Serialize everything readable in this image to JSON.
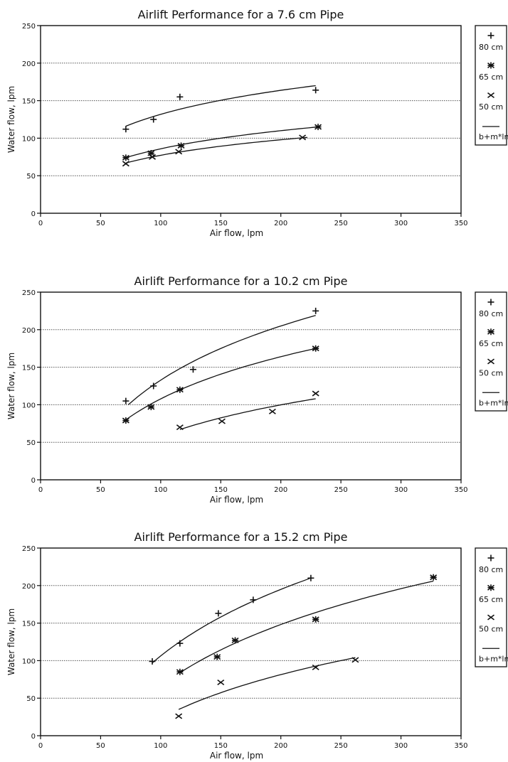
{
  "legend": {
    "placement": "right",
    "entries": [
      {
        "label": "80 cm",
        "marker": "plus"
      },
      {
        "label": "65 cm",
        "marker": "asterisk"
      },
      {
        "label": "50 cm",
        "marker": "x"
      },
      {
        "label": "b+m*lnx",
        "marker": "line"
      }
    ]
  },
  "colors": {
    "ink": "#111111",
    "grid": "#555555"
  },
  "chart_data": [
    {
      "type": "scatter",
      "title": "Airlift Performance for a 7.6 cm Pipe",
      "xlabel": "Air flow, lpm",
      "ylabel": "Water flow, lpm",
      "xlim": [
        0,
        350
      ],
      "ylim": [
        0,
        250
      ],
      "xticks": [
        0,
        50,
        100,
        150,
        200,
        250,
        300,
        350
      ],
      "yticks": [
        0,
        50,
        100,
        150,
        200,
        250
      ],
      "grid": "horizontal dotted",
      "series": [
        {
          "name": "80 cm",
          "marker": "plus",
          "x": [
            71,
            94,
            116,
            229
          ],
          "y": [
            112,
            125,
            155,
            164
          ],
          "fit": {
            "type": "logarithmic",
            "from": [
              71,
              116
            ],
            "to": [
              229,
              170
            ]
          }
        },
        {
          "name": "65 cm",
          "marker": "asterisk",
          "x": [
            71,
            92,
            117,
            231
          ],
          "y": [
            74,
            80,
            90,
            115
          ],
          "fit": {
            "type": "logarithmic",
            "from": [
              71,
              74
            ],
            "to": [
              231,
              115
            ]
          }
        },
        {
          "name": "50 cm",
          "marker": "x",
          "x": [
            71,
            93,
            115,
            218
          ],
          "y": [
            66,
            75,
            82,
            101
          ],
          "fit": {
            "type": "logarithmic",
            "from": [
              71,
              67
            ],
            "to": [
              222,
              101
            ]
          }
        }
      ]
    },
    {
      "type": "scatter",
      "title": "Airlift Performance for a 10.2 cm Pipe",
      "xlabel": "Air flow, lpm",
      "ylabel": "Water flow, lpm",
      "xlim": [
        0,
        350
      ],
      "ylim": [
        0,
        250
      ],
      "xticks": [
        0,
        50,
        100,
        150,
        200,
        250,
        300,
        350
      ],
      "yticks": [
        0,
        50,
        100,
        150,
        200,
        250
      ],
      "grid": "horizontal dotted",
      "series": [
        {
          "name": "80 cm",
          "marker": "plus",
          "x": [
            71,
            94,
            127,
            229
          ],
          "y": [
            105,
            125,
            147,
            225
          ],
          "fit": {
            "type": "logarithmic",
            "from": [
              73,
              100
            ],
            "to": [
              229,
              219
            ]
          }
        },
        {
          "name": "65 cm",
          "marker": "asterisk",
          "x": [
            71,
            92,
            116,
            229
          ],
          "y": [
            79,
            97,
            120,
            175
          ],
          "fit": {
            "type": "logarithmic",
            "from": [
              71,
              80
            ],
            "to": [
              229,
              175
            ]
          }
        },
        {
          "name": "50 cm",
          "marker": "x",
          "x": [
            116,
            151,
            193,
            229
          ],
          "y": [
            70,
            78,
            91,
            115
          ],
          "fit": {
            "type": "logarithmic",
            "from": [
              116,
              67
            ],
            "to": [
              229,
              108
            ]
          }
        }
      ]
    },
    {
      "type": "scatter",
      "title": "Airlift Performance for a 15.2 cm Pipe",
      "xlabel": "Air flow, lpm",
      "ylabel": "Water flow, lpm",
      "xlim": [
        0,
        350
      ],
      "ylim": [
        0,
        250
      ],
      "xticks": [
        0,
        50,
        100,
        150,
        200,
        250,
        300,
        350
      ],
      "yticks": [
        0,
        50,
        100,
        150,
        200,
        250
      ],
      "grid": "horizontal dotted",
      "series": [
        {
          "name": "80 cm",
          "marker": "plus",
          "x": [
            93,
            116,
            148,
            177,
            225
          ],
          "y": [
            99,
            123,
            163,
            181,
            210
          ],
          "fit": {
            "type": "logarithmic",
            "from": [
              93,
              97
            ],
            "to": [
              225,
              210
            ]
          }
        },
        {
          "name": "65 cm",
          "marker": "asterisk",
          "x": [
            116,
            147,
            162,
            229,
            327
          ],
          "y": [
            85,
            105,
            127,
            155,
            211
          ],
          "fit": {
            "type": "logarithmic",
            "from": [
              116,
              84
            ],
            "to": [
              327,
              206
            ]
          }
        },
        {
          "name": "50 cm",
          "marker": "x",
          "x": [
            115,
            150,
            229,
            262
          ],
          "y": [
            26,
            71,
            91,
            101
          ],
          "fit": {
            "type": "logarithmic",
            "from": [
              115,
              35
            ],
            "to": [
              262,
              104
            ]
          }
        }
      ]
    }
  ]
}
